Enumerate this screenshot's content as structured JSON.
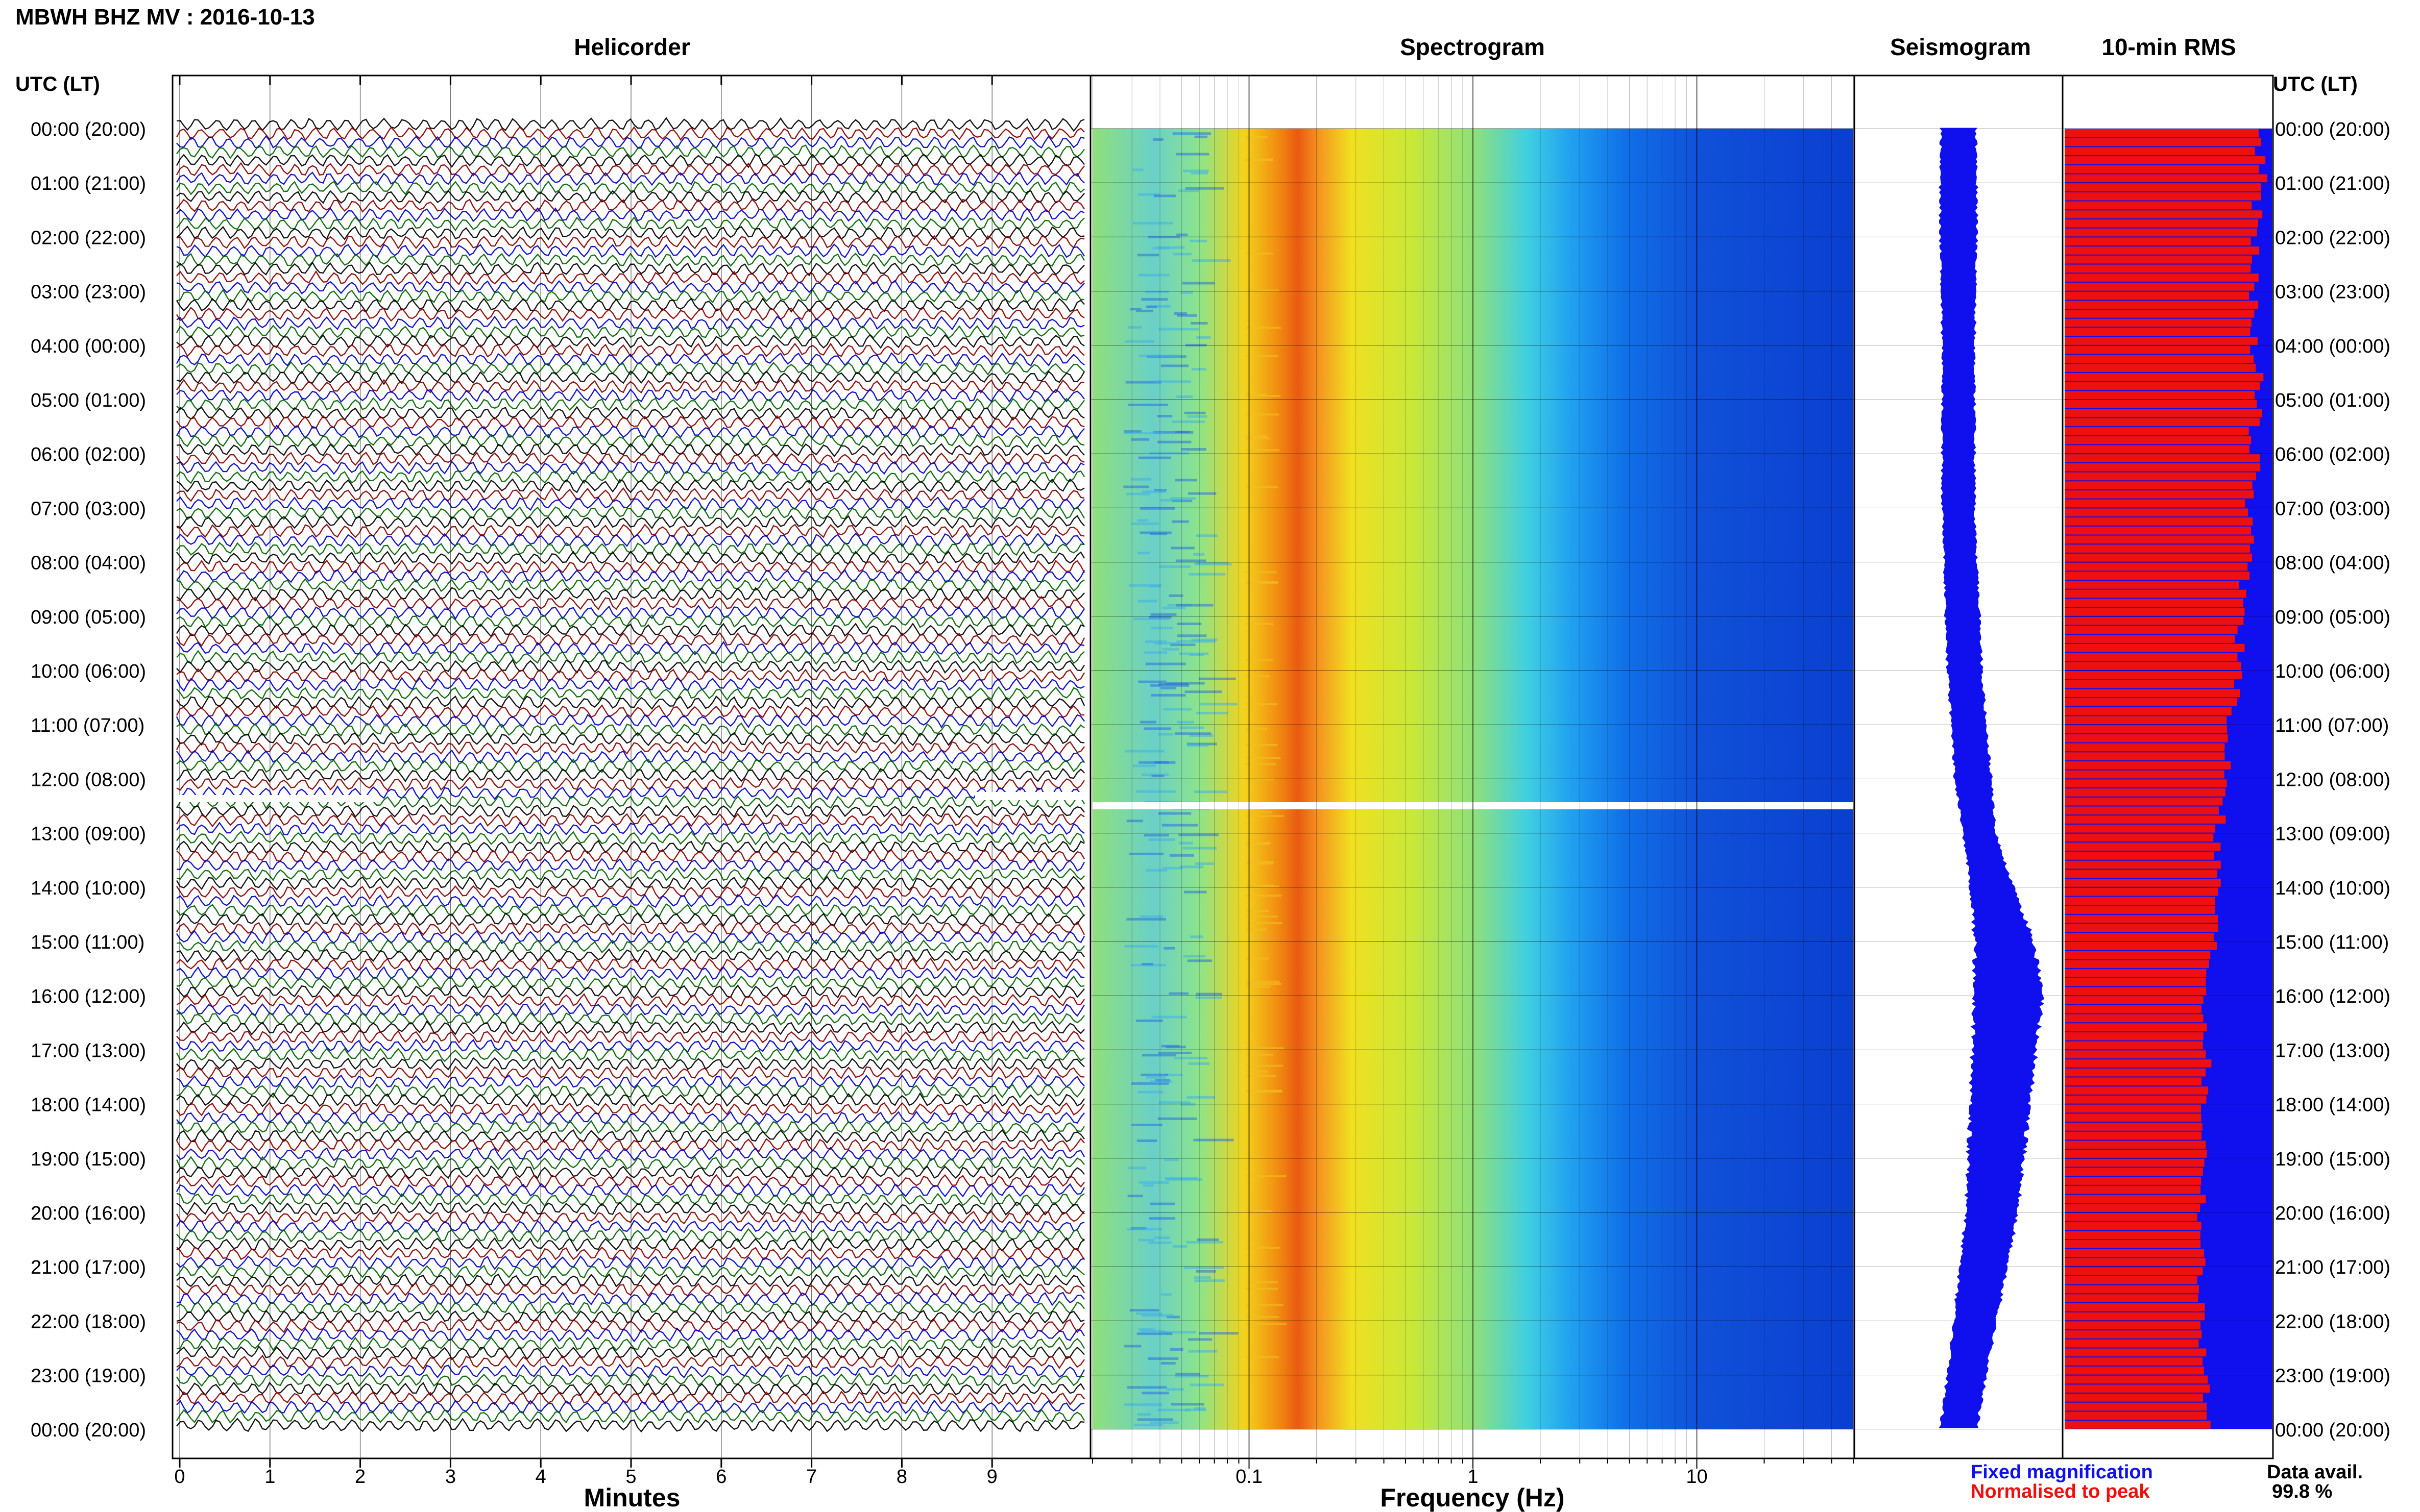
{
  "header": {
    "title": "MBWH BHZ MV : 2016-10-13",
    "utc_label_left": "UTC (LT)",
    "utc_label_right": "UTC (LT)"
  },
  "panels": {
    "helicorder_title": "Helicorder",
    "spectrogram_title": "Spectrogram",
    "seismogram_title": "Seismogram",
    "rms_title": "10-min RMS"
  },
  "time_labels": [
    "00:00 (20:00)",
    "01:00 (21:00)",
    "02:00 (22:00)",
    "03:00 (23:00)",
    "04:00 (00:00)",
    "05:00 (01:00)",
    "06:00 (02:00)",
    "07:00 (03:00)",
    "08:00 (04:00)",
    "09:00 (05:00)",
    "10:00 (06:00)",
    "11:00 (07:00)",
    "12:00 (08:00)",
    "13:00 (09:00)",
    "14:00 (10:00)",
    "15:00 (11:00)",
    "16:00 (12:00)",
    "17:00 (13:00)",
    "18:00 (14:00)",
    "19:00 (15:00)",
    "20:00 (16:00)",
    "21:00 (17:00)",
    "22:00 (18:00)",
    "23:00 (19:00)",
    "00:00 (20:00)"
  ],
  "legend": {
    "fixed_label": "Fixed magnification",
    "fixed_color": "#1010ee",
    "normalised_label": "Normalised to peak",
    "normalised_color": "#ee1010",
    "avail_label": "Data avail.",
    "avail_value": "99.8 %"
  },
  "chart_data": [
    {
      "type": "line",
      "title": "Helicorder",
      "xlabel": "Minutes",
      "ylabel": "UTC (LT)",
      "x_ticks": [
        "0",
        "1",
        "2",
        "3",
        "4",
        "5",
        "6",
        "7",
        "8",
        "9"
      ],
      "xlim": [
        0,
        10
      ],
      "rows": 144,
      "trace_colors": [
        "#000000",
        "#8b0000",
        "#0000cc",
        "#006600"
      ],
      "gap_utc": "12:30"
    },
    {
      "type": "heatmap",
      "title": "Spectrogram",
      "xlabel": "Frequency (Hz)",
      "x_scale": "log",
      "x_ticks": [
        "0.1",
        "1",
        "10"
      ],
      "xlim": [
        0.02,
        50
      ],
      "dominant_frequency_hz": 0.2,
      "colormap": "jet"
    },
    {
      "type": "area",
      "title": "Seismogram",
      "color": "#1010ee",
      "amplitude_by_hour": [
        0.16,
        0.17,
        0.17,
        0.16,
        0.15,
        0.15,
        0.15,
        0.15,
        0.15,
        0.16,
        0.16,
        0.16,
        0.17,
        0.15,
        0.2,
        0.28,
        0.32,
        0.3,
        0.28,
        0.26,
        0.24,
        0.22,
        0.2,
        0.18,
        0.17
      ],
      "center_by_hour": [
        0.5,
        0.5,
        0.5,
        0.5,
        0.5,
        0.5,
        0.5,
        0.5,
        0.51,
        0.52,
        0.53,
        0.55,
        0.57,
        0.6,
        0.66,
        0.72,
        0.74,
        0.72,
        0.7,
        0.68,
        0.66,
        0.62,
        0.58,
        0.54,
        0.5
      ]
    },
    {
      "type": "bar",
      "title": "10-min RMS",
      "series": [
        {
          "name": "Fixed magnification",
          "color": "#1010ee"
        },
        {
          "name": "Normalised to peak",
          "color": "#ee1010"
        }
      ],
      "normalised_by_hour": [
        0.98,
        0.97,
        0.93,
        0.94,
        0.95,
        0.95,
        0.94,
        0.91,
        0.9,
        0.88,
        0.86,
        0.8,
        0.82,
        0.76,
        0.76,
        0.74,
        0.7,
        0.71,
        0.69,
        0.7,
        0.68,
        0.68,
        0.68,
        0.7,
        0.7
      ]
    }
  ]
}
